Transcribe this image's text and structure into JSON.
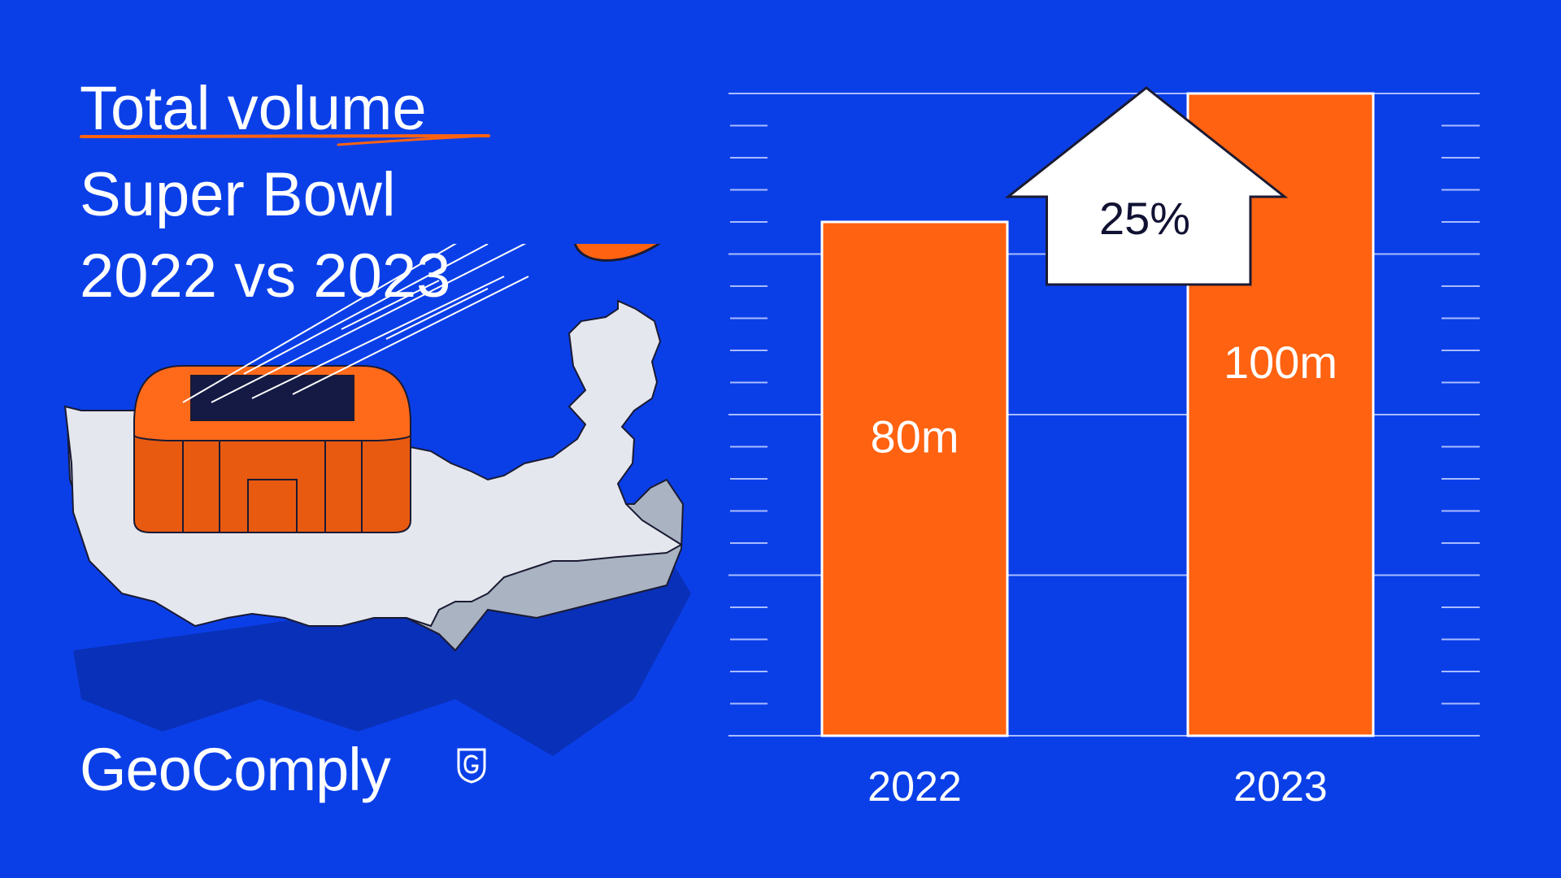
{
  "title": {
    "line1": "Total volume",
    "line2": "Super Bowl",
    "line3": "2022 vs 2023"
  },
  "brand": {
    "name": "GeoComply",
    "icon": "shield-g-icon"
  },
  "colors": {
    "background": "#0a3fe8",
    "bar": "#ff6210",
    "text": "#ffffff",
    "arrow_text": "#111133",
    "map": "#e5e7ee"
  },
  "chart_data": {
    "type": "bar",
    "categories": [
      "2022",
      "2023"
    ],
    "values": [
      80,
      100
    ],
    "data_labels": [
      "80m",
      "100m"
    ],
    "unit": "m",
    "ylim": [
      0,
      100
    ],
    "change_label": "25%",
    "change_direction": "up",
    "grid": true,
    "title": "Total volume Super Bowl 2022 vs 2023"
  }
}
